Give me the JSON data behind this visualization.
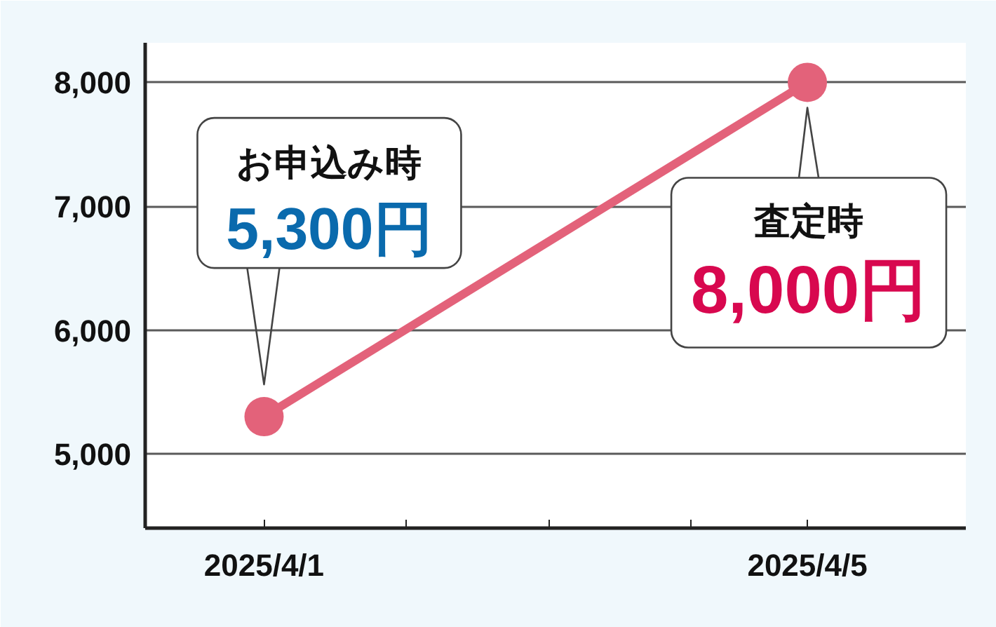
{
  "chart_data": {
    "type": "line",
    "x": [
      "2025-04-01",
      "2025-04-05"
    ],
    "series": [
      {
        "color": "#e3627a",
        "values": [
          5300,
          8000
        ]
      }
    ],
    "marker": "circle",
    "grid": "y",
    "xlim": [
      "2025-03-31T03:00",
      "2025-04-06T04:00"
    ],
    "xticks": [
      {
        "value": "2025-04-01",
        "label": "2025/4/1"
      },
      {
        "value": "2025-04-02T01:00",
        "label": null
      },
      {
        "value": "2025-04-03T02:30",
        "label": null
      },
      {
        "value": "2025-04-04T03:30",
        "label": null
      },
      {
        "value": "2025-04-05",
        "label": "2025/4/5"
      }
    ],
    "ylim": [
      4400,
      8320
    ],
    "yticks": [
      {
        "value": 5000,
        "label": "5,000"
      },
      {
        "value": 6000,
        "label": "6,000"
      },
      {
        "value": 7000,
        "label": "7,000"
      },
      {
        "value": 8000,
        "label": "8,000"
      }
    ],
    "annotations": [
      {
        "text": "お申込み時\n5,300円",
        "x": "2025-04-01",
        "y": 5300
      },
      {
        "text": "査定時\n8,000円",
        "x": "2025-04-05",
        "y": 8000
      }
    ]
  }
}
